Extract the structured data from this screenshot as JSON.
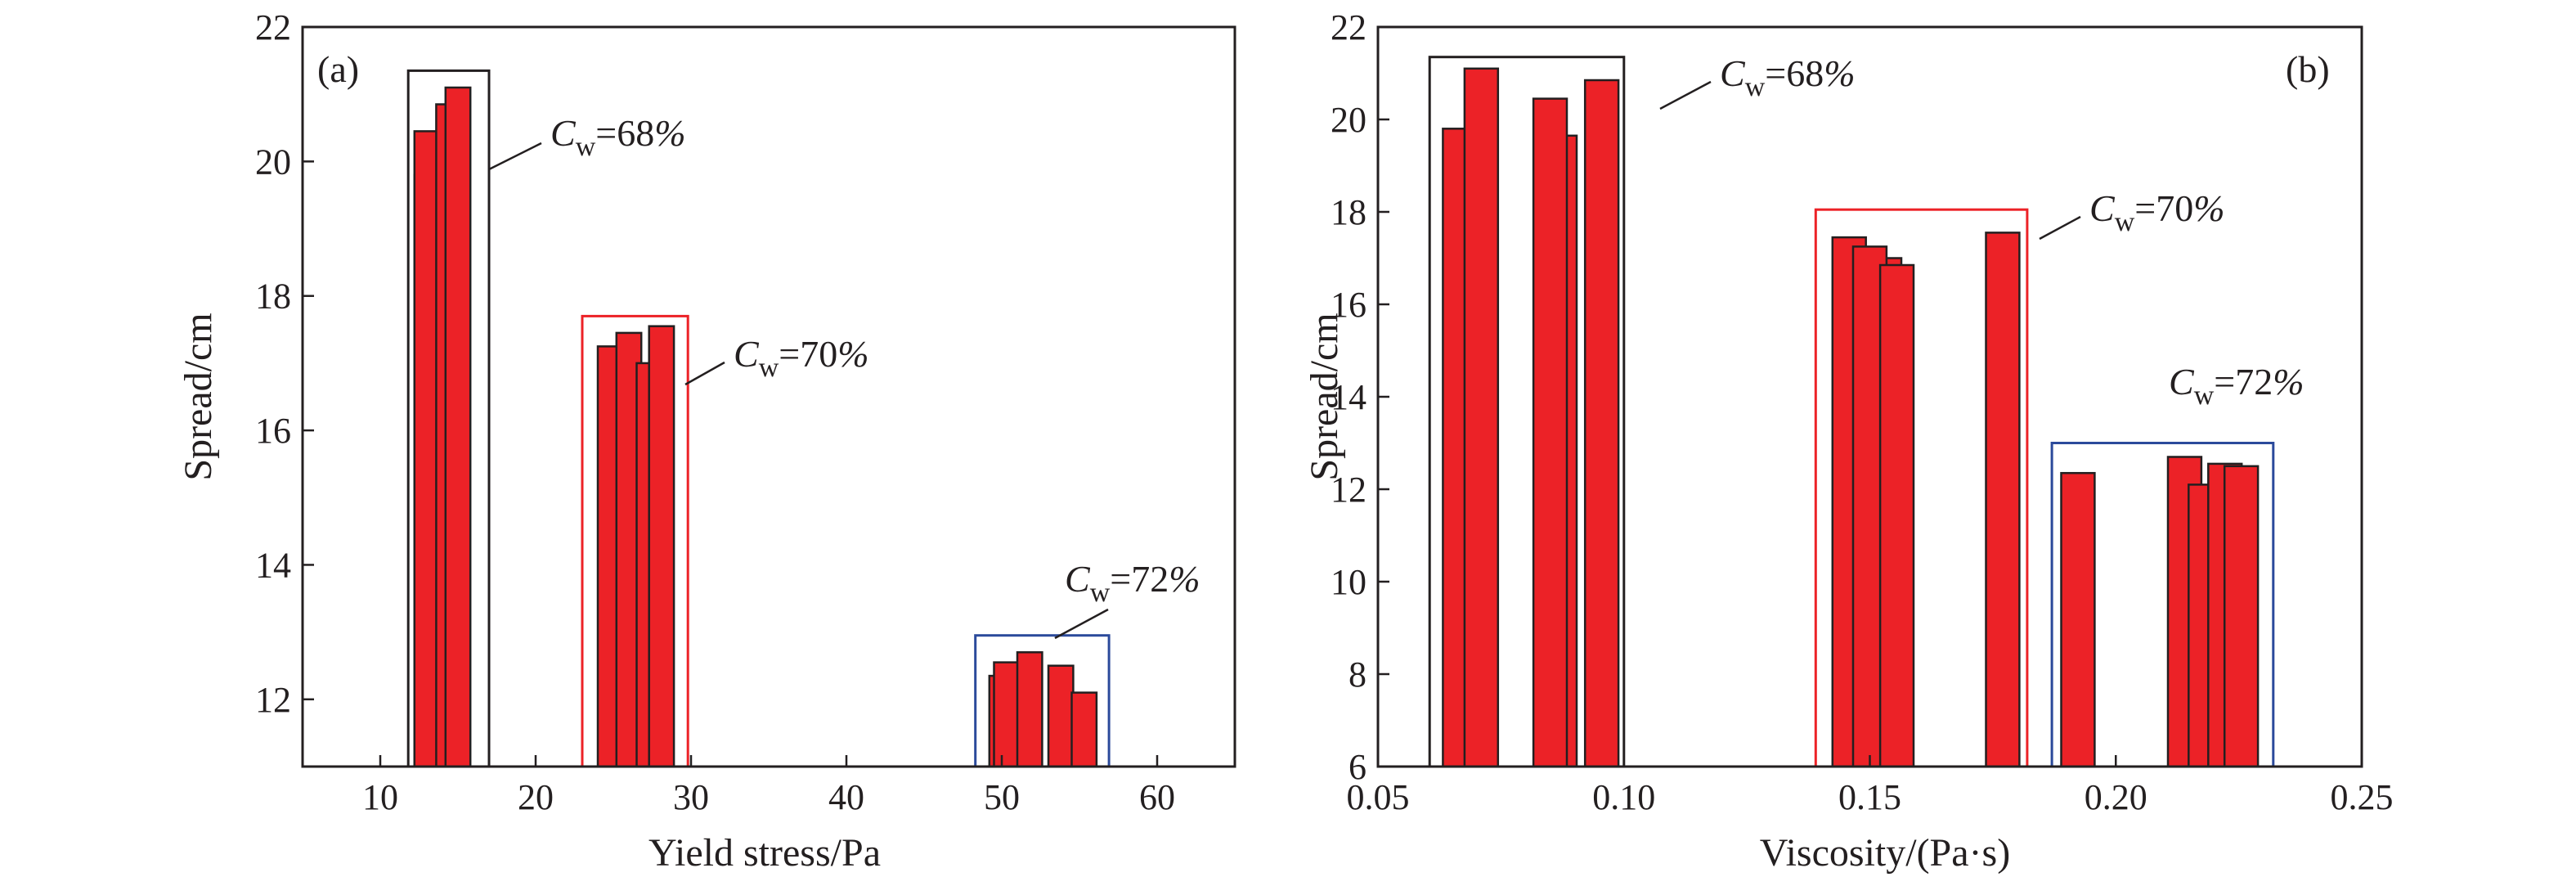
{
  "colors": {
    "bar": "#ec2227",
    "bar_edge": "#231f20",
    "axis": "#231f20"
  },
  "chart_data": [
    {
      "type": "bar",
      "panel_label": "(a)",
      "xlabel": "Yield stress/Pa",
      "ylabel": "Spread/cm",
      "xlim": [
        5,
        65
      ],
      "ylim": [
        11,
        22
      ],
      "xticks": [
        10,
        20,
        30,
        40,
        50,
        60
      ],
      "yticks": [
        12,
        14,
        16,
        18,
        20,
        22
      ],
      "bar_width": 1.6,
      "bars": [
        {
          "x": 13.0,
          "y": 19.8
        },
        {
          "x": 13.0,
          "y": 20.45
        },
        {
          "x": 14.4,
          "y": 20.85
        },
        {
          "x": 15.0,
          "y": 21.1
        },
        {
          "x": 24.8,
          "y": 17.25
        },
        {
          "x": 26.0,
          "y": 17.45
        },
        {
          "x": 27.3,
          "y": 17.0
        },
        {
          "x": 28.1,
          "y": 17.55
        },
        {
          "x": 50.0,
          "y": 12.35
        },
        {
          "x": 50.3,
          "y": 12.55
        },
        {
          "x": 51.8,
          "y": 12.7
        },
        {
          "x": 53.8,
          "y": 12.5
        },
        {
          "x": 55.3,
          "y": 12.1
        }
      ],
      "groups": [
        {
          "label_c": "C",
          "label_sub": "w",
          "label_rest": "=68%",
          "color": "#231f20",
          "x_range": [
            11.8,
            17.0
          ],
          "y_range": [
            11.0,
            21.35
          ]
        },
        {
          "label_c": "C",
          "label_sub": "w",
          "label_rest": "=70%",
          "color": "#ec2227",
          "x_range": [
            23.0,
            29.8
          ],
          "y_range": [
            11.0,
            17.7
          ]
        },
        {
          "label_c": "C",
          "label_sub": "w",
          "label_rest": "=72%",
          "color": "#2b4a9b",
          "x_range": [
            48.3,
            56.9
          ],
          "y_range": [
            11.0,
            12.95
          ]
        }
      ]
    },
    {
      "type": "bar",
      "panel_label": "(b)",
      "xlabel": "Viscosity/(Pa·s)",
      "ylabel": "Spread/cm",
      "xlim": [
        0.05,
        0.25
      ],
      "ylim": [
        6,
        22
      ],
      "xticks": [
        "0.05",
        "0.10",
        "0.15",
        "0.20",
        "0.25"
      ],
      "yticks": [
        6,
        8,
        10,
        12,
        14,
        16,
        18,
        20,
        22
      ],
      "bar_width": 0.0068,
      "bars": [
        {
          "x": 0.0666,
          "y": 19.8
        },
        {
          "x": 0.071,
          "y": 21.1
        },
        {
          "x": 0.087,
          "y": 19.65
        },
        {
          "x": 0.085,
          "y": 20.45
        },
        {
          "x": 0.0955,
          "y": 20.85
        },
        {
          "x": 0.1458,
          "y": 17.45
        },
        {
          "x": 0.153,
          "y": 17.0
        },
        {
          "x": 0.15,
          "y": 17.25
        },
        {
          "x": 0.1555,
          "y": 16.85
        },
        {
          "x": 0.177,
          "y": 17.55
        },
        {
          "x": 0.1923,
          "y": 12.35
        },
        {
          "x": 0.214,
          "y": 12.7
        },
        {
          "x": 0.2182,
          "y": 12.1
        },
        {
          "x": 0.2222,
          "y": 12.55
        },
        {
          "x": 0.2255,
          "y": 12.5
        }
      ],
      "groups": [
        {
          "label_c": "C",
          "label_sub": "w",
          "label_rest": "=68%",
          "color": "#231f20",
          "x_range": [
            0.0605,
            0.1
          ],
          "y_range": [
            6.0,
            21.35
          ]
        },
        {
          "label_c": "C",
          "label_sub": "w",
          "label_rest": "=70%",
          "color": "#ec2227",
          "x_range": [
            0.139,
            0.182
          ],
          "y_range": [
            6.0,
            18.05
          ]
        },
        {
          "label_c": "C",
          "label_sub": "w",
          "label_rest": "=72%",
          "color": "#2b4a9b",
          "x_range": [
            0.187,
            0.232
          ],
          "y_range": [
            6.0,
            13.0
          ]
        }
      ]
    }
  ]
}
